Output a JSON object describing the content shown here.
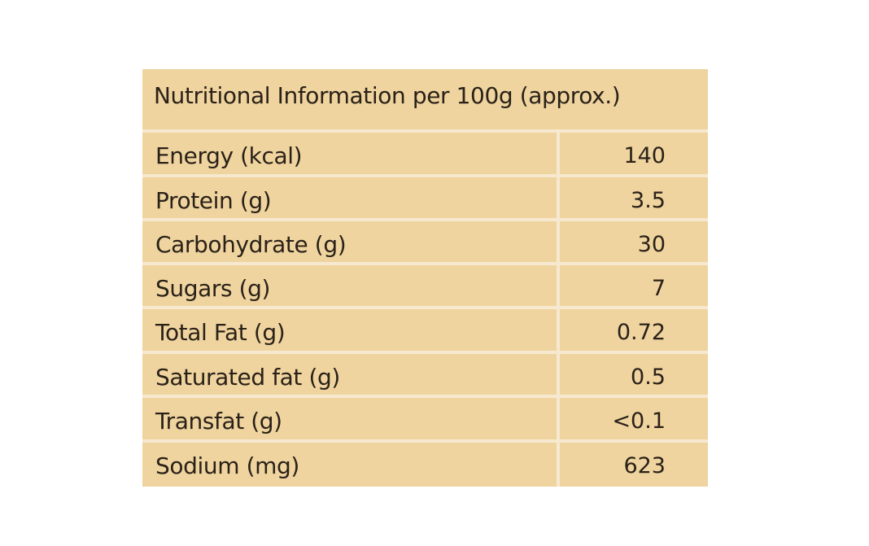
{
  "table": {
    "header": "Nutritional Information per 100g (approx.)",
    "rows": [
      {
        "label": "Energy (kcal)",
        "value": "140"
      },
      {
        "label": "Protein (g)",
        "value": "3.5"
      },
      {
        "label": "Carbohydrate (g)",
        "value": "30"
      },
      {
        "label": "Sugars (g)",
        "value": "7"
      },
      {
        "label": "Total Fat (g)",
        "value": "0.72"
      },
      {
        "label": "Saturated fat (g)",
        "value": "0.5"
      },
      {
        "label": "Transfat (g)",
        "value": "<0.1"
      },
      {
        "label": "Sodium (mg)",
        "value": "623"
      }
    ]
  },
  "colors": {
    "panel": "#efd49f",
    "divider": "#f6e9cf",
    "text": "#2a2118"
  }
}
